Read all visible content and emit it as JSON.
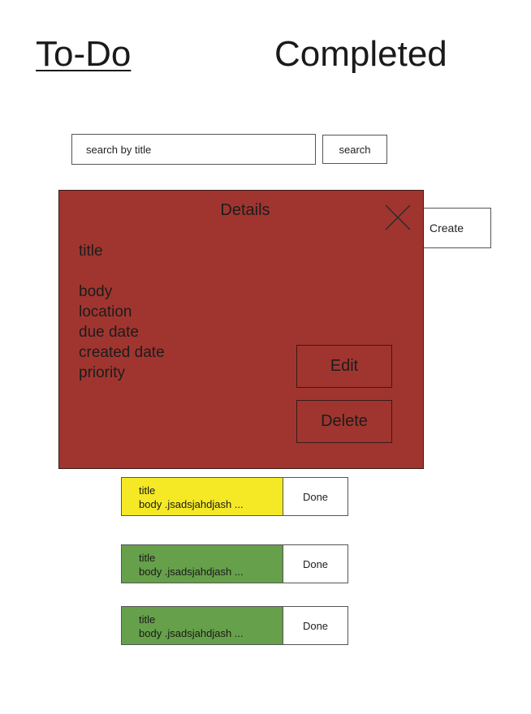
{
  "tabs": {
    "todo": "To-Do",
    "completed": "Completed"
  },
  "search": {
    "placeholder": "search by title",
    "button_label": "search"
  },
  "create_label": "Create",
  "details": {
    "title": "Details",
    "fields": [
      "title",
      "body",
      "location",
      "due date",
      "created date",
      "priority"
    ],
    "edit_label": "Edit",
    "delete_label": "Delete",
    "background_color": "#a0352f"
  },
  "tasks": [
    {
      "title": "title",
      "body": "body .jsadsjahdjash ...",
      "color": "#f5e925",
      "done_label": "Done"
    },
    {
      "title": "title",
      "body": "body .jsadsjahdjash ...",
      "color": "#66a04a",
      "done_label": "Done"
    },
    {
      "title": "title",
      "body": "body .jsadsjahdjash ...",
      "color": "#66a04a",
      "done_label": "Done"
    }
  ]
}
